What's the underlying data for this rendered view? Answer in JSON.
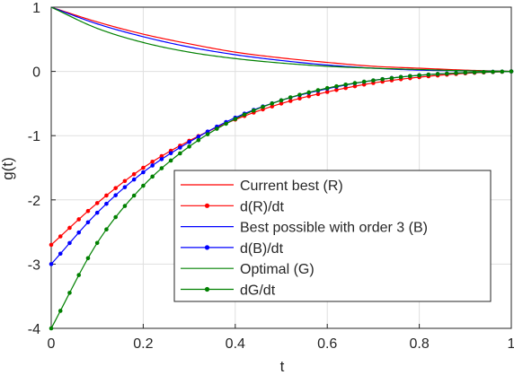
{
  "chart_data": {
    "type": "line",
    "title": "",
    "xlabel": "t",
    "ylabel": "g(t)",
    "xlim": [
      0,
      1
    ],
    "ylim": [
      -4,
      1
    ],
    "xticks": [
      0,
      0.2,
      0.4,
      0.6,
      0.8,
      1
    ],
    "xtick_labels": [
      "0",
      "0.2",
      "0.4",
      "0.6",
      "0.8",
      "1"
    ],
    "yticks": [
      -4,
      -3,
      -2,
      -1,
      0,
      1
    ],
    "ytick_labels": [
      "-4",
      "-3",
      "-2",
      "-1",
      "0",
      "1"
    ],
    "grid": true,
    "legend_placement": "lower-right",
    "series": [
      {
        "name": "Current best (R)",
        "color": "#ff0000",
        "marker": "none",
        "x": [
          0,
          0.1,
          0.2,
          0.3,
          0.4,
          0.5,
          0.6,
          0.7,
          0.8,
          0.9,
          1
        ],
        "y": [
          1.0,
          0.77,
          0.58,
          0.43,
          0.3,
          0.21,
          0.14,
          0.08,
          0.05,
          0.02,
          0.0
        ]
      },
      {
        "name": "d(R)/dt",
        "color": "#ff0000",
        "marker": "dot",
        "x": [
          0,
          0.1,
          0.2,
          0.3,
          0.4,
          0.5,
          0.6,
          0.7,
          0.8,
          0.9,
          1
        ],
        "y": [
          -2.7,
          -2.05,
          -1.5,
          -1.08,
          -0.75,
          -0.5,
          -0.32,
          -0.18,
          -0.09,
          -0.03,
          0.0
        ]
      },
      {
        "name": "Best possible with order 3 (B)",
        "color": "#0000ff",
        "marker": "none",
        "x": [
          0,
          0.1,
          0.2,
          0.3,
          0.4,
          0.5,
          0.6,
          0.7,
          0.8,
          0.9,
          1
        ],
        "y": [
          1.0,
          0.74,
          0.54,
          0.38,
          0.26,
          0.17,
          0.1,
          0.05,
          0.02,
          0.01,
          0.0
        ]
      },
      {
        "name": "d(B)/dt",
        "color": "#0000ff",
        "marker": "dot",
        "x": [
          0,
          0.1,
          0.2,
          0.3,
          0.4,
          0.5,
          0.6,
          0.7,
          0.8,
          0.9,
          1
        ],
        "y": [
          -3.0,
          -2.2,
          -1.57,
          -1.1,
          -0.72,
          -0.45,
          -0.27,
          -0.14,
          -0.06,
          -0.02,
          0.0
        ]
      },
      {
        "name": "Optimal (G)",
        "color": "#008000",
        "marker": "none",
        "x": [
          0,
          0.1,
          0.2,
          0.3,
          0.4,
          0.5,
          0.6,
          0.7,
          0.8,
          0.9,
          1
        ],
        "y": [
          1.0,
          0.67,
          0.45,
          0.3,
          0.2,
          0.13,
          0.08,
          0.05,
          0.03,
          0.01,
          0.0
        ]
      },
      {
        "name": "dG/dt",
        "color": "#008000",
        "marker": "dot",
        "x": [
          0,
          0.1,
          0.2,
          0.3,
          0.4,
          0.5,
          0.6,
          0.7,
          0.8,
          0.9,
          1
        ],
        "y": [
          -4.0,
          -2.67,
          -1.78,
          -1.17,
          -0.74,
          -0.45,
          -0.26,
          -0.14,
          -0.06,
          -0.02,
          0.0
        ]
      }
    ]
  }
}
